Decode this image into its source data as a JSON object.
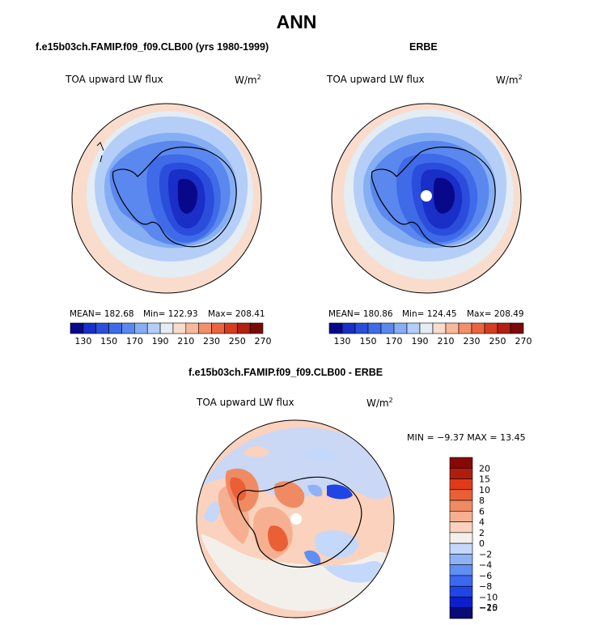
{
  "figure": {
    "title": "ANN",
    "colors": {
      "scale_14": [
        "#08088a",
        "#1a2ec8",
        "#2b4ddc",
        "#3f6ae8",
        "#5a88ef",
        "#86aef3",
        "#b4cef8",
        "#e4ecf4",
        "#fadccc",
        "#f7b99a",
        "#f2906a",
        "#ea6440",
        "#d63c20",
        "#b3200f",
        "#7a0a0a"
      ],
      "scale_diff": [
        "#0a0a78",
        "#0c1fc8",
        "#1f45e6",
        "#3a68ef",
        "#5f8ef4",
        "#8fb2f7",
        "#c4d8fb",
        "#f3f0ec",
        "#fad2bd",
        "#f6b091",
        "#f08a63",
        "#ea5f36",
        "#e03a1a",
        "#b01d0c",
        "#880808"
      ]
    },
    "top_left": {
      "title": "f.e15b03ch.FAMIP.f09_f09.CLB00 (yrs 1980-1999)",
      "var_label": "TOA upward LW flux",
      "units_base": "W/m",
      "units_exp": "2",
      "mean": "MEAN= 182.68",
      "min": "Min= 122.93",
      "max": "Max= 208.41"
    },
    "top_right": {
      "title": "ERBE",
      "var_label": "TOA upward LW flux",
      "units_base": "W/m",
      "units_exp": "2",
      "mean": "MEAN= 180.86",
      "min": "Min= 124.45",
      "max": "Max= 208.49"
    },
    "bottom": {
      "title": "f.e15b03ch.FAMIP.f09_f09.CLB00 - ERBE",
      "var_label": "TOA upward LW flux",
      "units_base": "W/m",
      "units_exp": "2",
      "minmax": "MIN =  −9.37 MAX =  13.45"
    }
  },
  "chart_data": [
    {
      "type": "heatmap",
      "title": "f.e15b03ch.FAMIP.f09_f09.CLB00 (yrs 1980-1999)",
      "variable": "TOA upward LW flux",
      "units": "W/m2",
      "projection": "south polar stereographic",
      "colorbar_ticks": [
        "130",
        "150",
        "170",
        "190",
        "210",
        "230",
        "250",
        "270"
      ],
      "levels": [
        125,
        130,
        140,
        150,
        160,
        170,
        180,
        190,
        200,
        210,
        220,
        230,
        240,
        250,
        260,
        270
      ],
      "stats": {
        "mean": 182.68,
        "min": 122.93,
        "max": 208.41
      }
    },
    {
      "type": "heatmap",
      "title": "ERBE",
      "variable": "TOA upward LW flux",
      "units": "W/m2",
      "projection": "south polar stereographic",
      "colorbar_ticks": [
        "130",
        "150",
        "170",
        "190",
        "210",
        "230",
        "250",
        "270"
      ],
      "levels": [
        125,
        130,
        140,
        150,
        160,
        170,
        180,
        190,
        200,
        210,
        220,
        230,
        240,
        250,
        260,
        270
      ],
      "stats": {
        "mean": 180.86,
        "min": 124.45,
        "max": 208.49
      }
    },
    {
      "type": "heatmap",
      "title": "f.e15b03ch.FAMIP.f09_f09.CLB00 - ERBE",
      "variable": "TOA upward LW flux",
      "units": "W/m2",
      "projection": "south polar stereographic",
      "colorbar_ticks": [
        "20",
        "15",
        "10",
        "8",
        "6",
        "4",
        "2",
        "0",
        "−2",
        "−4",
        "−6",
        "−8",
        "−10",
        "−15",
        "−20"
      ],
      "stats": {
        "min": -9.37,
        "max": 13.45
      }
    }
  ]
}
